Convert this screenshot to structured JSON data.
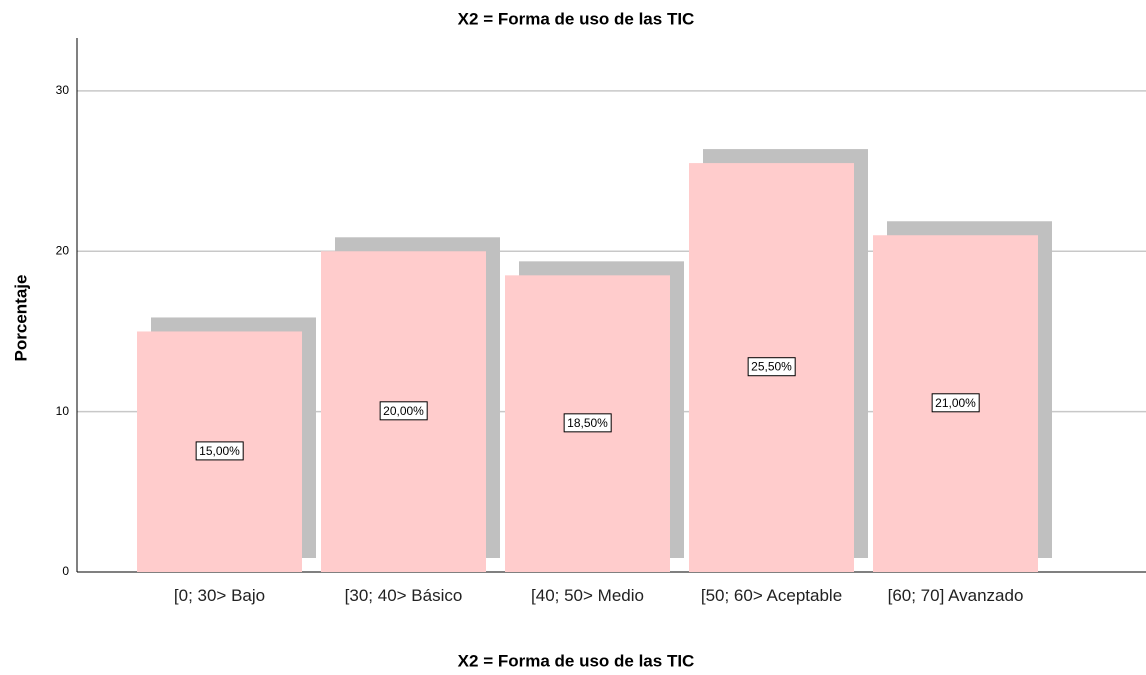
{
  "chart_data": {
    "type": "bar",
    "title": "X2 = Forma de uso de las TIC",
    "x_label": "X2 = Forma de uso de las TIC",
    "y_label": "Porcentaje",
    "categories": [
      "[0; 30> Bajo",
      "[30; 40> Básico",
      "[40; 50> Medio",
      "[50; 60> Aceptable",
      "[60; 70] Avanzado"
    ],
    "values": [
      15,
      20,
      18.5,
      25.5,
      21
    ],
    "value_labels": [
      "15,00%",
      "20,00%",
      "18,50%",
      "25,50%",
      "21,00%"
    ],
    "color": "#ffcccc",
    "shadow_color": "#c0c0c0",
    "ylim": [
      0,
      33.3
    ],
    "yticks": [
      0,
      10,
      20,
      30
    ],
    "grid": true
  }
}
